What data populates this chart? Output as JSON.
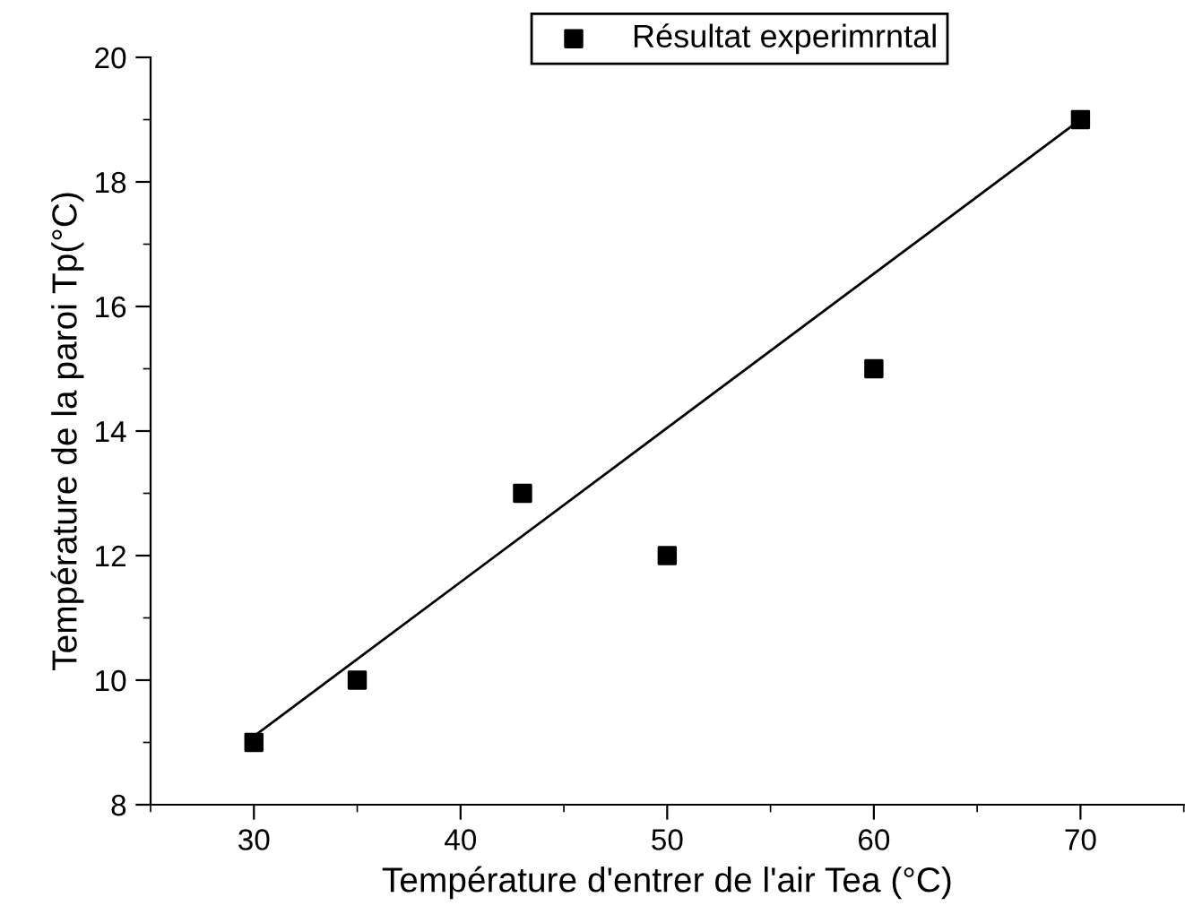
{
  "chart_data": {
    "type": "scatter",
    "xlabel": "Température d'entrer de l'air Tea (°C)",
    "ylabel": "Température de la paroi Tp(°C)",
    "series": [
      {
        "name": "Résultat experimrntal",
        "color": "#000000",
        "marker": "square",
        "x": [
          30,
          35,
          43,
          50,
          60,
          70
        ],
        "values": [
          9,
          10,
          13,
          12,
          15,
          19
        ]
      },
      {
        "type": "line",
        "color": "#000000",
        "x": [
          30,
          70
        ],
        "values": [
          9.1,
          19.0
        ]
      }
    ],
    "xlim": [
      25,
      75
    ],
    "xticks": [
      30,
      40,
      50,
      60,
      70
    ],
    "ylim": [
      8,
      20
    ],
    "yticks": [
      8,
      10,
      12,
      14,
      16,
      18,
      20
    ],
    "grid": false,
    "legend": "top"
  }
}
